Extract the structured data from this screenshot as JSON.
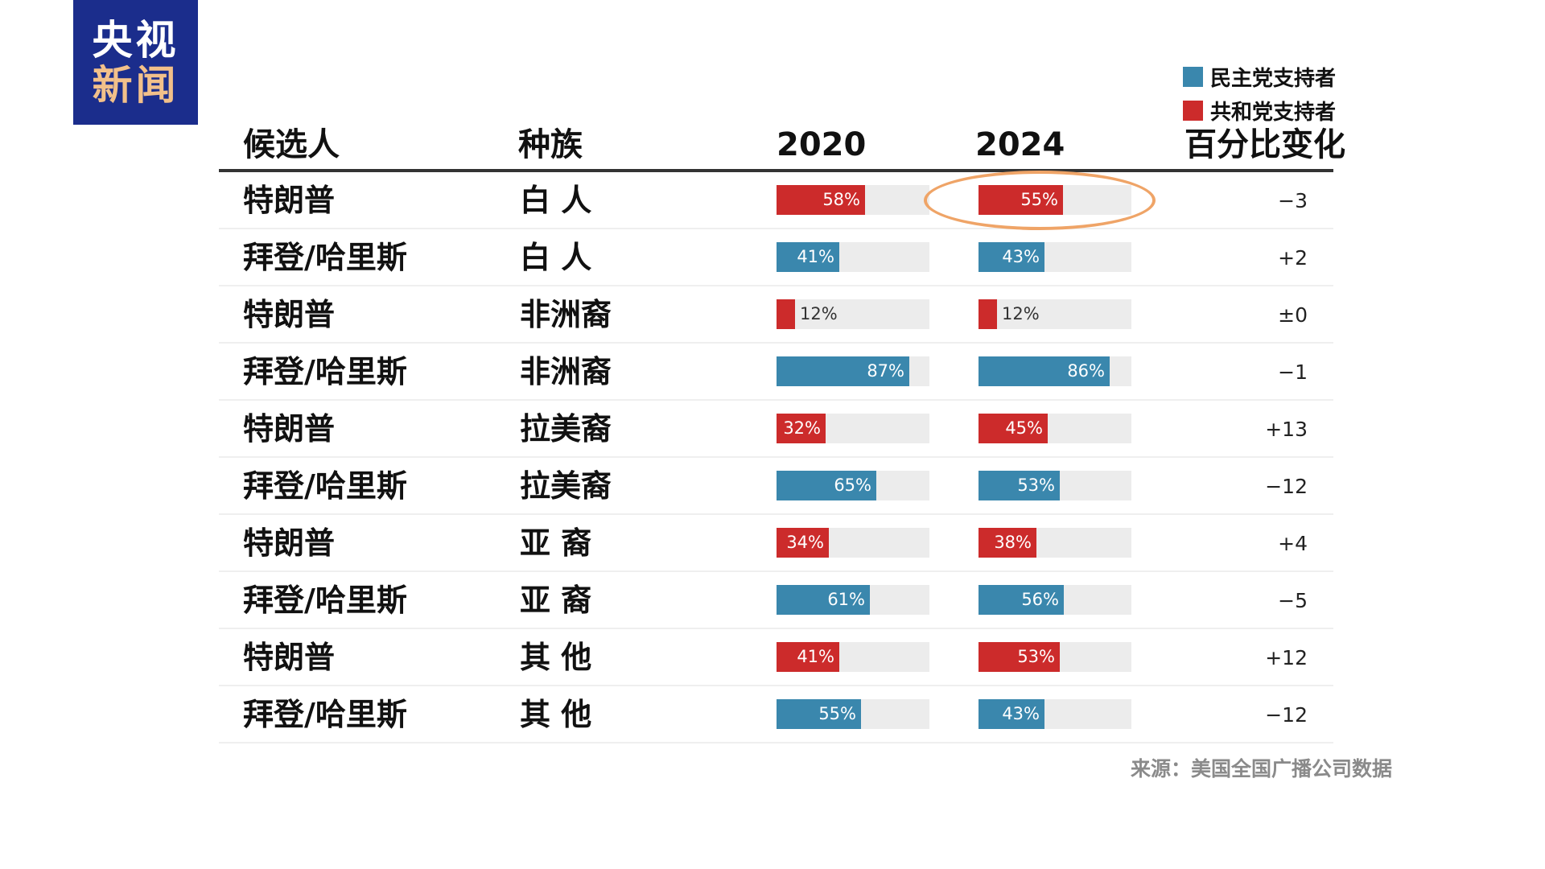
{
  "logo": {
    "line1": "央视",
    "line2": "新闻"
  },
  "legend": [
    {
      "label": "民主党支持者",
      "color": "#3a87ad"
    },
    {
      "label": "共和党支持者",
      "color": "#cc2b2b"
    }
  ],
  "headers": {
    "candidate": "候选人",
    "race": "种族",
    "y2020": "2020",
    "y2024": "2024",
    "change": "百分比变化"
  },
  "source": "来源：美国全国广播公司数据",
  "chart_data": {
    "type": "bar",
    "columns": [
      "候选人",
      "种族",
      "2020",
      "2024",
      "百分比变化"
    ],
    "rows": [
      {
        "candidate": "特朗普",
        "race": "白 人",
        "party": "rep",
        "v2020": 58,
        "l2020": "58%",
        "v2024": 55,
        "l2024": "55%",
        "change": "−3",
        "highlight2024": true
      },
      {
        "candidate": "拜登/哈里斯",
        "race": "白 人",
        "party": "dem",
        "v2020": 41,
        "l2020": "41%",
        "v2024": 43,
        "l2024": "43%",
        "change": "+2"
      },
      {
        "candidate": "特朗普",
        "race": "非洲裔",
        "party": "rep",
        "v2020": 12,
        "l2020": "12%",
        "v2024": 12,
        "l2024": "12%",
        "change": "±0"
      },
      {
        "candidate": "拜登/哈里斯",
        "race": "非洲裔",
        "party": "dem",
        "v2020": 87,
        "l2020": "87%",
        "v2024": 86,
        "l2024": "86%",
        "change": "−1"
      },
      {
        "candidate": "特朗普",
        "race": "拉美裔",
        "party": "rep",
        "v2020": 32,
        "l2020": "32%",
        "v2024": 45,
        "l2024": "45%",
        "change": "+13"
      },
      {
        "candidate": "拜登/哈里斯",
        "race": "拉美裔",
        "party": "dem",
        "v2020": 65,
        "l2020": "65%",
        "v2024": 53,
        "l2024": "53%",
        "change": "−12"
      },
      {
        "candidate": "特朗普",
        "race": "亚 裔",
        "party": "rep",
        "v2020": 34,
        "l2020": "34%",
        "v2024": 38,
        "l2024": "38%",
        "change": "+4"
      },
      {
        "candidate": "拜登/哈里斯",
        "race": "亚 裔",
        "party": "dem",
        "v2020": 61,
        "l2020": "61%",
        "v2024": 56,
        "l2024": "56%",
        "change": "−5"
      },
      {
        "candidate": "特朗普",
        "race": "其 他",
        "party": "rep",
        "v2020": 41,
        "l2020": "41%",
        "v2024": 53,
        "l2024": "53%",
        "change": "+12"
      },
      {
        "candidate": "拜登/哈里斯",
        "race": "其 他",
        "party": "dem",
        "v2020": 55,
        "l2020": "55%",
        "v2024": 43,
        "l2024": "43%",
        "change": "−12"
      }
    ],
    "xlim": [
      0,
      100
    ],
    "colors": {
      "dem": "#3a87ad",
      "rep": "#cc2b2b",
      "track": "#ececec",
      "highlight": "#efa467"
    },
    "grid": false,
    "legend_position": "top-right"
  }
}
